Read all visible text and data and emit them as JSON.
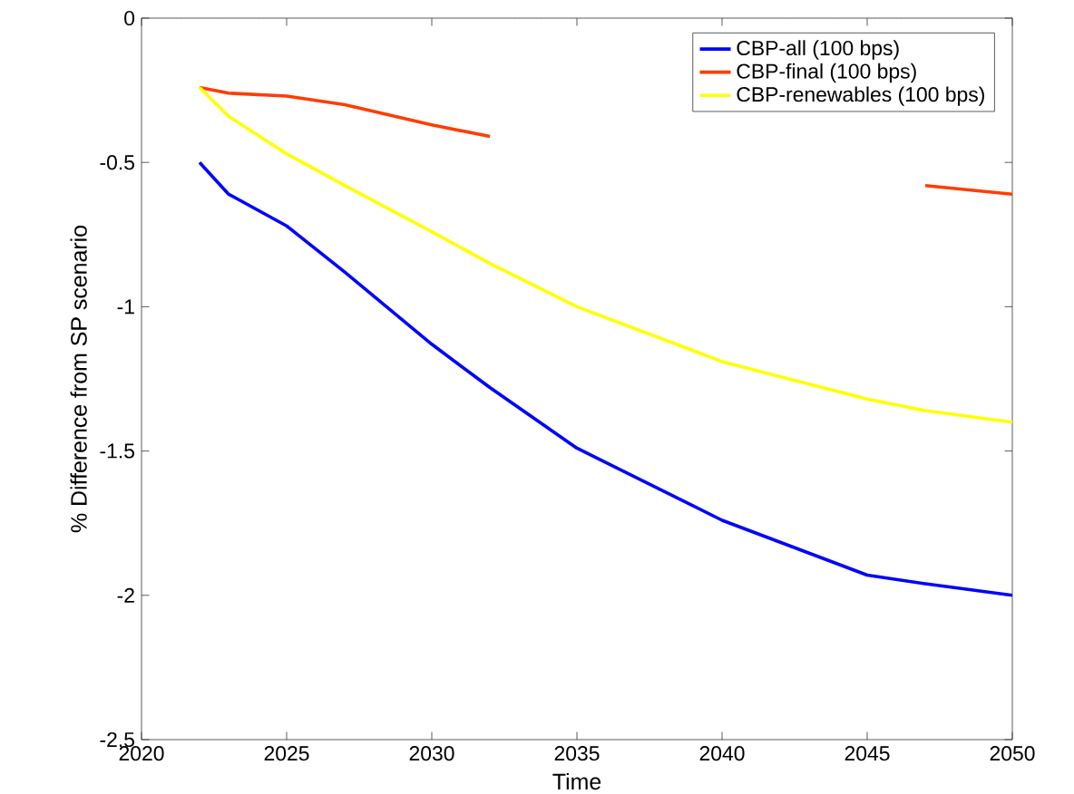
{
  "chart_data": {
    "type": "line",
    "xlabel": "Time",
    "ylabel": "% Difference from SP scenario",
    "x": [
      2022,
      2023,
      2025,
      2027,
      2030,
      2032,
      2035,
      2040,
      2045,
      2047,
      2050
    ],
    "series": [
      {
        "name": "CBP-all (100 bps)",
        "color": "#0000ff",
        "values": [
          -0.5,
          -0.61,
          -0.72,
          -0.88,
          -1.13,
          -1.28,
          -1.49,
          -1.74,
          -1.93,
          -1.96,
          -2.0
        ]
      },
      {
        "name": "CBP-final (100 bps)",
        "color": "#ff3c00",
        "values": [
          -0.24,
          -0.26,
          -0.27,
          -0.3,
          -0.37,
          -0.41,
          null,
          null,
          null,
          -0.58,
          -0.61
        ]
      },
      {
        "name": "CBP-renewables (100 bps)",
        "color": "#ffff00",
        "values": [
          -0.24,
          -0.34,
          -0.47,
          -0.58,
          -0.74,
          -0.85,
          -1.0,
          -1.19,
          -1.32,
          -1.36,
          -1.4
        ]
      }
    ],
    "xlim": [
      2020,
      2050
    ],
    "ylim": [
      -2.5,
      0
    ],
    "xticks": [
      2020,
      2025,
      2030,
      2035,
      2040,
      2045,
      2050
    ],
    "yticks": [
      -2.5,
      -2,
      -1.5,
      -1,
      -0.5,
      0
    ],
    "ref_lines": [
      {
        "axis": "y",
        "value": 0,
        "color": "#808080",
        "line_style": "dotted"
      }
    ],
    "legend": "top right",
    "grid": false,
    "marker": "none",
    "line_style": "solid"
  }
}
